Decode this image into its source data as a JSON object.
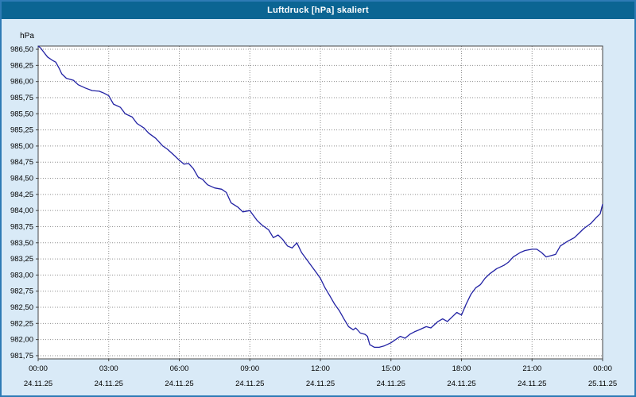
{
  "window": {
    "title": "Luftdruck [hPa] skaliert"
  },
  "colors": {
    "titlebar_bg": "#0b6593",
    "titlebar_text": "#ffffff",
    "window_bg": "#d9eaf7",
    "plot_bg": "#ffffff",
    "grid": "#8f8f8f",
    "axis": "#444444",
    "axis_text": "#000000",
    "line": "#2121a3"
  },
  "chart_data": {
    "type": "line",
    "title": "Luftdruck [hPa] skaliert",
    "unit_label": "hPa",
    "ylim": [
      981.7,
      986.55
    ],
    "xlim_hours": [
      0,
      24
    ],
    "grid": true,
    "legend": false,
    "y_ticks": [
      {
        "v": 986.5,
        "label": "986,50"
      },
      {
        "v": 986.25,
        "label": "986,25"
      },
      {
        "v": 986.0,
        "label": "986,00"
      },
      {
        "v": 985.75,
        "label": "985,75"
      },
      {
        "v": 985.5,
        "label": "985,50"
      },
      {
        "v": 985.25,
        "label": "985,25"
      },
      {
        "v": 985.0,
        "label": "985,00"
      },
      {
        "v": 984.75,
        "label": "984,75"
      },
      {
        "v": 984.5,
        "label": "984,50"
      },
      {
        "v": 984.25,
        "label": "984,25"
      },
      {
        "v": 984.0,
        "label": "984,00"
      },
      {
        "v": 983.75,
        "label": "983,75"
      },
      {
        "v": 983.5,
        "label": "983,50"
      },
      {
        "v": 983.25,
        "label": "983,25"
      },
      {
        "v": 983.0,
        "label": "983,00"
      },
      {
        "v": 982.75,
        "label": "982,75"
      },
      {
        "v": 982.5,
        "label": "982,50"
      },
      {
        "v": 982.25,
        "label": "982,25"
      },
      {
        "v": 982.0,
        "label": "982,00"
      },
      {
        "v": 981.75,
        "label": "981,75"
      }
    ],
    "x_ticks": [
      {
        "hour": 0,
        "time": "00:00",
        "date": "24.11.25"
      },
      {
        "hour": 3,
        "time": "03:00",
        "date": "24.11.25"
      },
      {
        "hour": 6,
        "time": "06:00",
        "date": "24.11.25"
      },
      {
        "hour": 9,
        "time": "09:00",
        "date": "24.11.25"
      },
      {
        "hour": 12,
        "time": "12:00",
        "date": "24.11.25"
      },
      {
        "hour": 15,
        "time": "15:00",
        "date": "24.11.25"
      },
      {
        "hour": 18,
        "time": "18:00",
        "date": "24.11.25"
      },
      {
        "hour": 21,
        "time": "21:00",
        "date": "24.11.25"
      },
      {
        "hour": 24,
        "time": "00:00",
        "date": "25.11.25"
      }
    ],
    "series": [
      {
        "name": "Luftdruck",
        "points": [
          [
            0,
            986.55
          ],
          [
            0.1,
            986.52
          ],
          [
            0.25,
            986.45
          ],
          [
            0.4,
            986.38
          ],
          [
            0.6,
            986.33
          ],
          [
            0.75,
            986.3
          ],
          [
            0.9,
            986.2
          ],
          [
            1,
            986.12
          ],
          [
            1.2,
            986.05
          ],
          [
            1.5,
            986.02
          ],
          [
            1.7,
            985.95
          ],
          [
            2,
            985.9
          ],
          [
            2.3,
            985.86
          ],
          [
            2.6,
            985.85
          ],
          [
            2.8,
            985.82
          ],
          [
            3,
            985.78
          ],
          [
            3.2,
            985.65
          ],
          [
            3.5,
            985.6
          ],
          [
            3.7,
            985.5
          ],
          [
            4,
            985.45
          ],
          [
            4.2,
            985.35
          ],
          [
            4.5,
            985.28
          ],
          [
            4.7,
            985.2
          ],
          [
            5,
            985.12
          ],
          [
            5.3,
            985.0
          ],
          [
            5.5,
            984.95
          ],
          [
            5.8,
            984.85
          ],
          [
            6,
            984.78
          ],
          [
            6.2,
            984.72
          ],
          [
            6.4,
            984.73
          ],
          [
            6.6,
            984.65
          ],
          [
            6.8,
            984.52
          ],
          [
            7,
            984.48
          ],
          [
            7.2,
            984.4
          ],
          [
            7.5,
            984.35
          ],
          [
            7.8,
            984.33
          ],
          [
            8,
            984.28
          ],
          [
            8.2,
            984.12
          ],
          [
            8.5,
            984.05
          ],
          [
            8.7,
            983.98
          ],
          [
            9,
            984.0
          ],
          [
            9.1,
            983.95
          ],
          [
            9.3,
            983.85
          ],
          [
            9.5,
            983.78
          ],
          [
            9.8,
            983.7
          ],
          [
            10,
            983.58
          ],
          [
            10.2,
            983.62
          ],
          [
            10.4,
            983.55
          ],
          [
            10.6,
            983.45
          ],
          [
            10.8,
            983.42
          ],
          [
            11,
            983.5
          ],
          [
            11.2,
            983.35
          ],
          [
            11.5,
            983.2
          ],
          [
            11.8,
            983.05
          ],
          [
            12,
            982.95
          ],
          [
            12.2,
            982.8
          ],
          [
            12.4,
            982.68
          ],
          [
            12.6,
            982.55
          ],
          [
            12.8,
            982.45
          ],
          [
            13,
            982.32
          ],
          [
            13.2,
            982.2
          ],
          [
            13.4,
            982.15
          ],
          [
            13.5,
            982.18
          ],
          [
            13.7,
            982.1
          ],
          [
            13.9,
            982.08
          ],
          [
            14,
            982.05
          ],
          [
            14.1,
            981.92
          ],
          [
            14.3,
            981.88
          ],
          [
            14.5,
            981.88
          ],
          [
            14.7,
            981.9
          ],
          [
            15,
            981.95
          ],
          [
            15.2,
            982.0
          ],
          [
            15.4,
            982.05
          ],
          [
            15.6,
            982.02
          ],
          [
            15.8,
            982.08
          ],
          [
            16,
            982.12
          ],
          [
            16.2,
            982.15
          ],
          [
            16.5,
            982.2
          ],
          [
            16.7,
            982.18
          ],
          [
            17,
            982.28
          ],
          [
            17.2,
            982.32
          ],
          [
            17.4,
            982.28
          ],
          [
            17.6,
            982.35
          ],
          [
            17.8,
            982.42
          ],
          [
            18,
            982.38
          ],
          [
            18.2,
            982.55
          ],
          [
            18.4,
            982.7
          ],
          [
            18.6,
            982.8
          ],
          [
            18.8,
            982.85
          ],
          [
            19,
            982.95
          ],
          [
            19.2,
            983.02
          ],
          [
            19.5,
            983.1
          ],
          [
            19.8,
            983.15
          ],
          [
            20,
            983.2
          ],
          [
            20.2,
            983.28
          ],
          [
            20.5,
            983.35
          ],
          [
            20.7,
            983.38
          ],
          [
            21,
            983.4
          ],
          [
            21.2,
            983.4
          ],
          [
            21.4,
            983.35
          ],
          [
            21.6,
            983.28
          ],
          [
            21.8,
            983.3
          ],
          [
            22,
            983.32
          ],
          [
            22.2,
            983.45
          ],
          [
            22.5,
            983.52
          ],
          [
            22.8,
            983.58
          ],
          [
            23,
            983.65
          ],
          [
            23.2,
            983.72
          ],
          [
            23.5,
            983.8
          ],
          [
            23.7,
            983.88
          ],
          [
            23.9,
            983.95
          ],
          [
            24,
            984.1
          ]
        ]
      }
    ]
  }
}
